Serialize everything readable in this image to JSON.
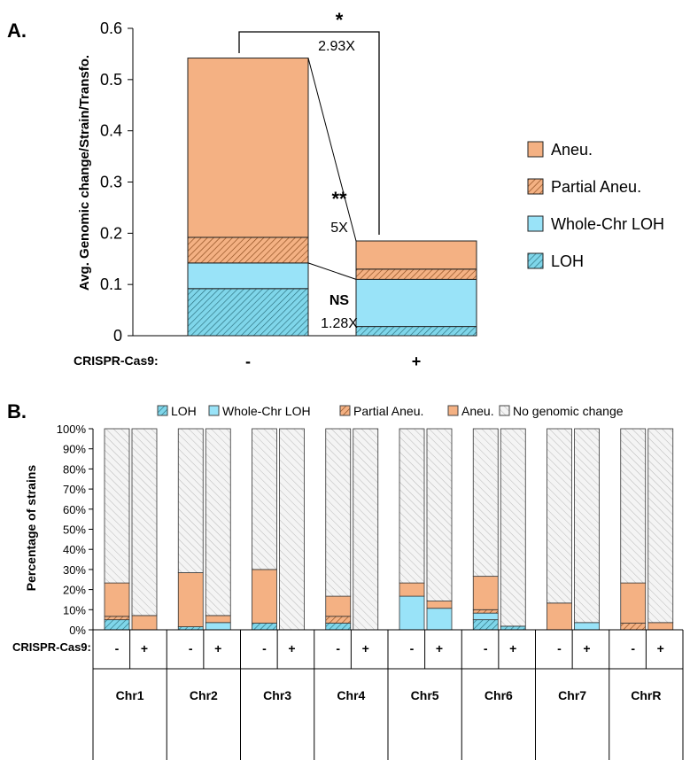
{
  "chart_data": [
    {
      "panel": "A.",
      "type": "bar",
      "stacked": true,
      "ylabel": "Avg. Genomic change/Strain/Transfo.",
      "ylim": [
        0,
        0.6
      ],
      "yticks": [
        "0",
        "0.1",
        "0.2",
        "0.3",
        "0.4",
        "0.5",
        "0.6"
      ],
      "x_row_label": "CRISPR-Cas9:",
      "categories": [
        "-",
        "+"
      ],
      "series": [
        {
          "name": "LOH",
          "values": [
            0.092,
            0.018
          ],
          "color": "#7fd6ea",
          "pattern": "hatch"
        },
        {
          "name": "Whole-Chr LOH",
          "values": [
            0.05,
            0.092
          ],
          "color": "#99e3f8",
          "pattern": "solid"
        },
        {
          "name": "Partial  Aneu.",
          "values": [
            0.05,
            0.02
          ],
          "color": "#f4b183",
          "pattern": "hatch"
        },
        {
          "name": "Aneu.",
          "values": [
            0.35,
            0.055
          ],
          "color": "#f4b183",
          "pattern": "solid"
        }
      ],
      "legend_order": [
        "Aneu.",
        "Partial  Aneu.",
        "Whole-Chr LOH",
        "LOH"
      ],
      "legend_position": "right",
      "annotations": {
        "overall": {
          "sig": "*",
          "fold": "2.93X"
        },
        "aneu": {
          "sig": "**",
          "fold": "5X"
        },
        "loh": {
          "sig": "NS",
          "fold": "1.28X"
        }
      }
    },
    {
      "panel": "B.",
      "type": "bar",
      "stacked": true,
      "ylabel": "Percentage of strains",
      "ylim": [
        0,
        100
      ],
      "yticks": [
        "0%",
        "10%",
        "20%",
        "30%",
        "40%",
        "50%",
        "60%",
        "70%",
        "80%",
        "90%",
        "100%"
      ],
      "x_row_label": "CRISPR-Cas9:",
      "groups": [
        "Chr1",
        "Chr2",
        "Chr3",
        "Chr4",
        "Chr5",
        "Chr6",
        "Chr7",
        "ChrR"
      ],
      "treatments": [
        "-",
        "+"
      ],
      "legend": [
        "LOH",
        "Whole-Chr LOH",
        "Partial Aneu.",
        "Aneu.",
        "No genomic change"
      ],
      "legend_position": "top",
      "series": [
        {
          "name": "LOH",
          "color": "#7fd6ea",
          "pattern": "hatch",
          "values": [
            5,
            0,
            1.5,
            0,
            3.3,
            0,
            3.3,
            0,
            0,
            0,
            5,
            1.8,
            0,
            0,
            0,
            0
          ]
        },
        {
          "name": "Whole-Chr LOH",
          "color": "#99e3f8",
          "pattern": "solid",
          "values": [
            0,
            0,
            0,
            3.6,
            0,
            0,
            0,
            0,
            16.7,
            10.7,
            3.3,
            0,
            0,
            3.6,
            0,
            0
          ]
        },
        {
          "name": "Partial Aneu.",
          "color": "#f4b183",
          "pattern": "hatch",
          "values": [
            1.7,
            0,
            0,
            0,
            0,
            0,
            3.4,
            0,
            0,
            0,
            1.7,
            0,
            0,
            0,
            3.3,
            0
          ]
        },
        {
          "name": "Aneu.",
          "color": "#f4b183",
          "pattern": "solid",
          "values": [
            16.6,
            7.1,
            26.9,
            3.5,
            26.7,
            0,
            10,
            0,
            6.6,
            3.6,
            16.6,
            0,
            13.3,
            0,
            20,
            3.6
          ]
        },
        {
          "name": "No genomic change",
          "color": "#f2f2f2",
          "pattern": "hatch-grey",
          "values": [
            76.7,
            92.9,
            71.6,
            92.9,
            70,
            100,
            83.3,
            100,
            76.7,
            85.7,
            73.4,
            98.2,
            86.7,
            96.4,
            76.7,
            96.4
          ]
        }
      ]
    }
  ]
}
